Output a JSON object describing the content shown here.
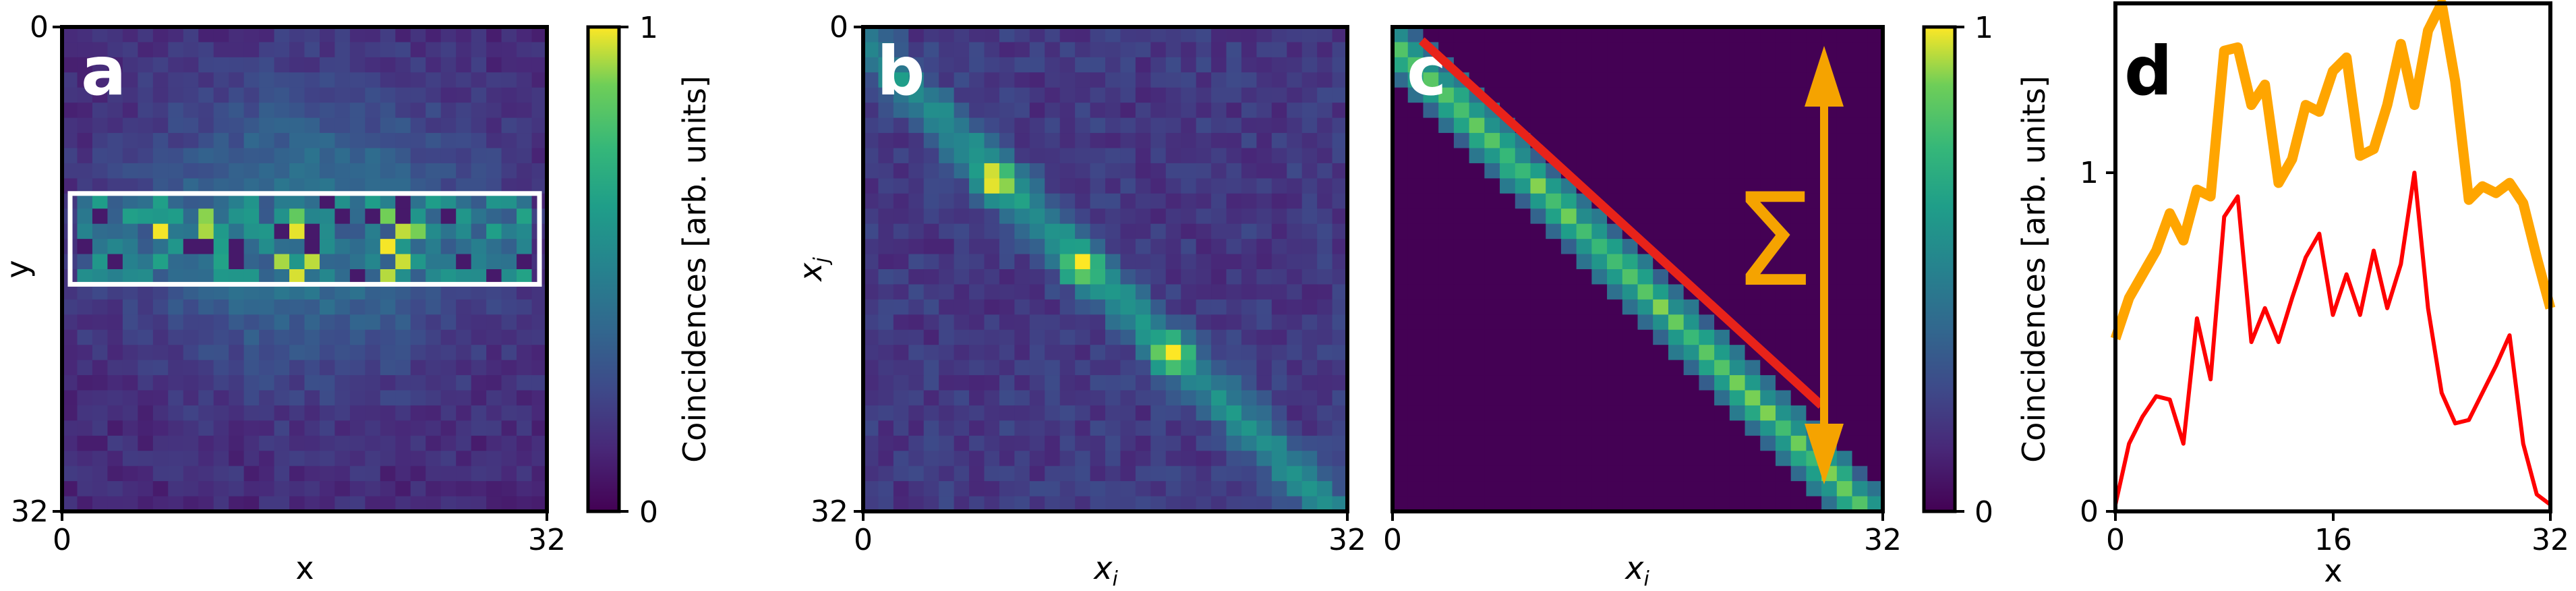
{
  "chart_data": [
    {
      "panel": "a",
      "type": "heatmap",
      "label": "a",
      "xlabel": "x",
      "ylabel": "y",
      "xlim": [
        0,
        32
      ],
      "ylim": [
        32,
        0
      ],
      "x_ticks": [
        "0",
        "32"
      ],
      "y_ticks": [
        "0",
        "32"
      ],
      "grid_size": [
        32,
        32
      ],
      "colormap": "viridis",
      "highlight_rows": [
        11,
        17
      ],
      "highlight_color": "#ffffff"
    },
    {
      "panel": "b",
      "type": "heatmap",
      "label": "b",
      "xlabel": "x_i",
      "ylabel": "x_j",
      "xlim": [
        0,
        32
      ],
      "ylim": [
        32,
        0
      ],
      "x_ticks": [
        "0",
        "32"
      ],
      "y_ticks": [
        "0",
        "32"
      ],
      "grid_size": [
        32,
        32
      ],
      "colormap": "viridis"
    },
    {
      "panel": "c",
      "type": "heatmap",
      "label": "c",
      "xlabel": "x_i",
      "xlim": [
        0,
        32
      ],
      "x_ticks": [
        "0",
        "32"
      ],
      "grid_size": [
        32,
        32
      ],
      "colormap": "viridis",
      "sum_symbol": "Σ",
      "sum_line": {
        "from": [
          5,
          3
        ],
        "to": [
          28,
          25
        ],
        "color": "#e8231a"
      },
      "sum_arrow_color": "#f5a300"
    },
    {
      "panel": "d",
      "type": "line",
      "label": "d",
      "xlabel": "x",
      "ylabel": "Coincidences [arb. units]",
      "xlim": [
        0,
        32
      ],
      "ylim": [
        0,
        1.5
      ],
      "x_ticks": [
        "0",
        "16",
        "32"
      ],
      "y_ticks": [
        "0",
        "1"
      ],
      "x": [
        0,
        1,
        2,
        3,
        4,
        5,
        6,
        7,
        8,
        9,
        10,
        11,
        12,
        13,
        14,
        15,
        16,
        17,
        18,
        19,
        20,
        21,
        22,
        23,
        24,
        25,
        26,
        27,
        28,
        29,
        30,
        31,
        32
      ],
      "series": [
        {
          "color": "#ffa500",
          "values": [
            0.51,
            0.63,
            0.7,
            0.77,
            0.88,
            0.8,
            0.95,
            0.93,
            1.36,
            1.37,
            1.2,
            1.26,
            0.97,
            1.04,
            1.2,
            1.18,
            1.3,
            1.34,
            1.05,
            1.07,
            1.2,
            1.38,
            1.2,
            1.42,
            1.5,
            1.27,
            0.92,
            0.96,
            0.94,
            0.97,
            0.91,
            0.75,
            0.6
          ]
        },
        {
          "color": "#ff0000",
          "values": [
            0.02,
            0.2,
            0.28,
            0.34,
            0.33,
            0.2,
            0.57,
            0.39,
            0.87,
            0.93,
            0.5,
            0.6,
            0.5,
            0.63,
            0.75,
            0.82,
            0.58,
            0.7,
            0.58,
            0.77,
            0.6,
            0.73,
            1.0,
            0.6,
            0.35,
            0.26,
            0.27,
            0.35,
            0.43,
            0.52,
            0.2,
            0.05,
            0.02
          ]
        }
      ]
    }
  ],
  "colorbars": [
    {
      "label": "Coincidences [arb. units]",
      "min_label": "0",
      "max_label": "1"
    },
    {
      "min_label": "0",
      "max_label": "1"
    }
  ]
}
